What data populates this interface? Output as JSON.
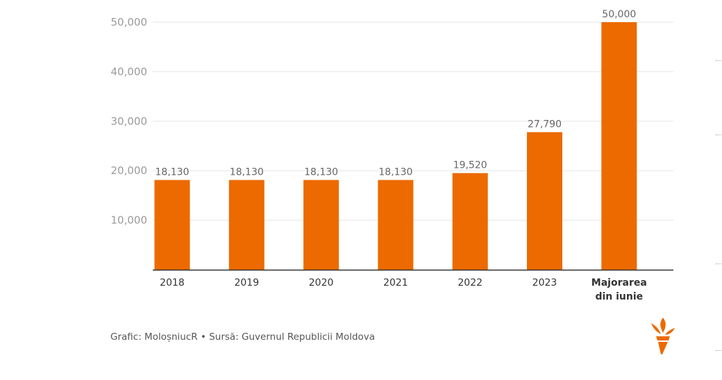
{
  "chart_data": {
    "type": "bar",
    "title": "",
    "xlabel": "",
    "ylabel": "",
    "categories": [
      "2018",
      "2019",
      "2020",
      "2021",
      "2022",
      "2023",
      "Majorarea din iunie"
    ],
    "values": [
      18130,
      18130,
      18130,
      18130,
      19520,
      27790,
      50000
    ],
    "data_labels": [
      "18,130",
      "18,130",
      "18,130",
      "18,130",
      "19,520",
      "27,790",
      "50,000"
    ],
    "ylim": [
      0,
      50000
    ],
    "yticks": [
      10000,
      20000,
      30000,
      40000,
      50000
    ],
    "ytick_labels": [
      "10,000",
      "20,000",
      "30,000",
      "40,000",
      "50,000"
    ],
    "grid": true,
    "legend": "none",
    "bar_color": "#ec6a00"
  },
  "footer": "Grafic: MoloșniucR • Sursă: Guvernul Republicii Moldova",
  "logo": {
    "icon": "torch-logo-icon",
    "color": "#ec6a00"
  }
}
